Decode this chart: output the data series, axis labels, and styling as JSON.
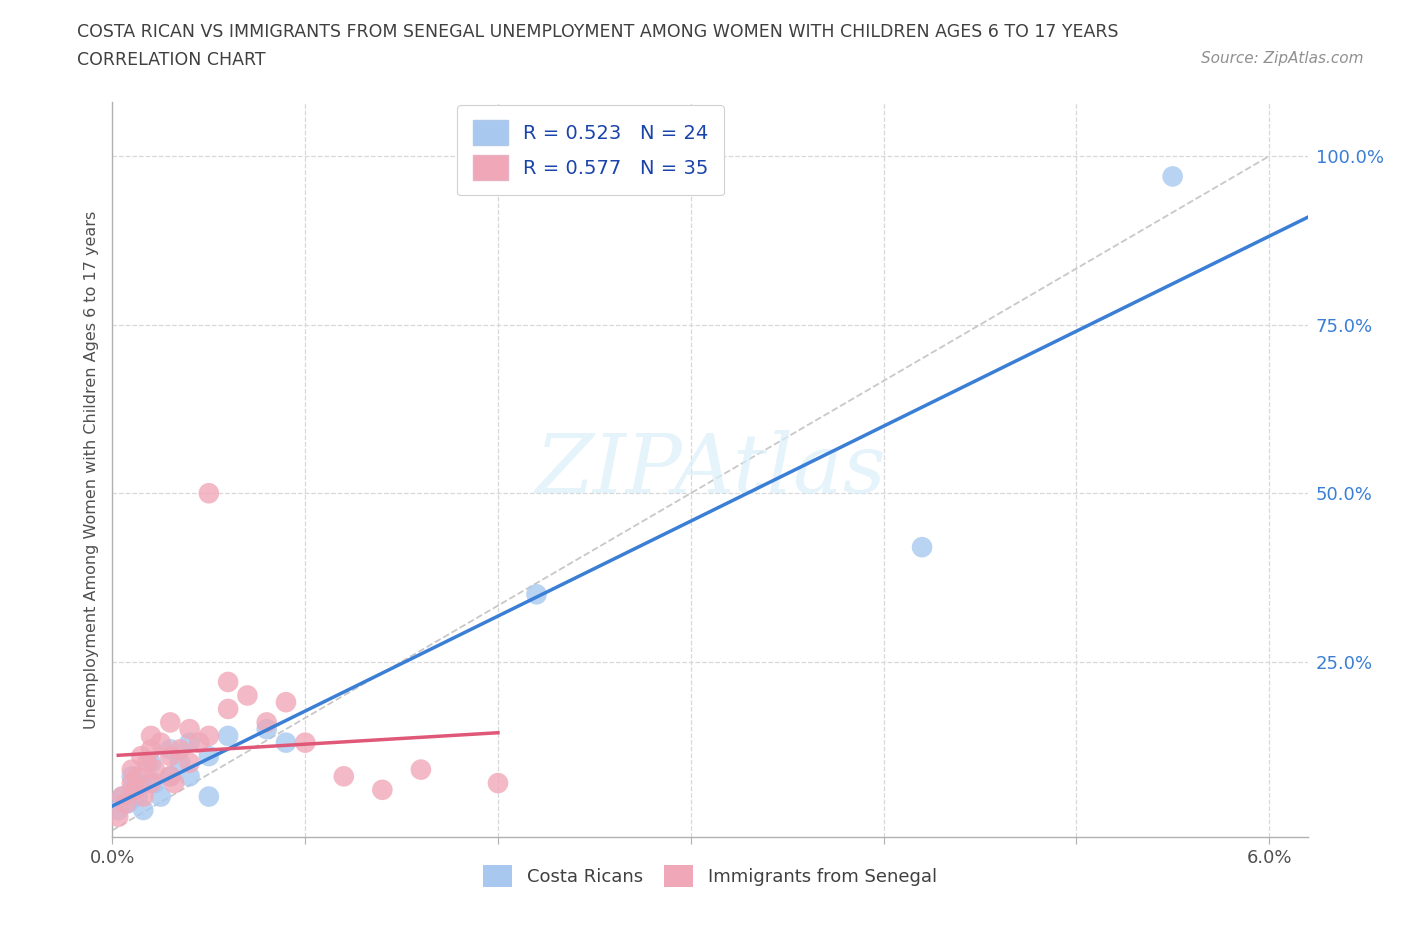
{
  "title_line1": "COSTA RICAN VS IMMIGRANTS FROM SENEGAL UNEMPLOYMENT AMONG WOMEN WITH CHILDREN AGES 6 TO 17 YEARS",
  "title_line2": "CORRELATION CHART",
  "source": "Source: ZipAtlas.com",
  "ylabel_label": "Unemployment Among Women with Children Ages 6 to 17 years",
  "xlim": [
    0.0,
    0.062
  ],
  "ylim": [
    -0.01,
    1.08
  ],
  "blue_R": 0.523,
  "blue_N": 24,
  "pink_R": 0.577,
  "pink_N": 35,
  "blue_color": "#a8c8f0",
  "pink_color": "#f0a8b8",
  "blue_line_color": "#3a7fd5",
  "pink_line_color": "#e05878",
  "diagonal_color": "#c8c8c8",
  "grid_color": "#d8d8d8",
  "blue_points_x": [
    0.0003,
    0.0005,
    0.0008,
    0.001,
    0.001,
    0.0013,
    0.0015,
    0.0016,
    0.002,
    0.0022,
    0.0025,
    0.003,
    0.003,
    0.0035,
    0.004,
    0.004,
    0.005,
    0.005,
    0.006,
    0.008,
    0.009,
    0.022,
    0.042,
    0.055
  ],
  "blue_points_y": [
    0.03,
    0.05,
    0.04,
    0.06,
    0.08,
    0.05,
    0.07,
    0.03,
    0.1,
    0.07,
    0.05,
    0.08,
    0.12,
    0.1,
    0.13,
    0.08,
    0.11,
    0.05,
    0.14,
    0.15,
    0.13,
    0.35,
    0.42,
    0.97
  ],
  "pink_points_x": [
    0.0003,
    0.0005,
    0.0007,
    0.001,
    0.001,
    0.0012,
    0.0013,
    0.0015,
    0.0016,
    0.0018,
    0.002,
    0.002,
    0.002,
    0.0022,
    0.0025,
    0.003,
    0.003,
    0.003,
    0.0032,
    0.0035,
    0.004,
    0.004,
    0.0045,
    0.005,
    0.005,
    0.006,
    0.006,
    0.007,
    0.008,
    0.009,
    0.01,
    0.012,
    0.014,
    0.016,
    0.02
  ],
  "pink_points_y": [
    0.02,
    0.05,
    0.04,
    0.07,
    0.09,
    0.06,
    0.08,
    0.11,
    0.05,
    0.1,
    0.07,
    0.12,
    0.14,
    0.09,
    0.13,
    0.08,
    0.11,
    0.16,
    0.07,
    0.12,
    0.1,
    0.15,
    0.13,
    0.5,
    0.14,
    0.18,
    0.22,
    0.2,
    0.16,
    0.19,
    0.13,
    0.08,
    0.06,
    0.09,
    0.07
  ],
  "background_color": "#ffffff",
  "title_color": "#404040",
  "watermark_color": "#daeef8",
  "watermark_alpha": 0.7
}
